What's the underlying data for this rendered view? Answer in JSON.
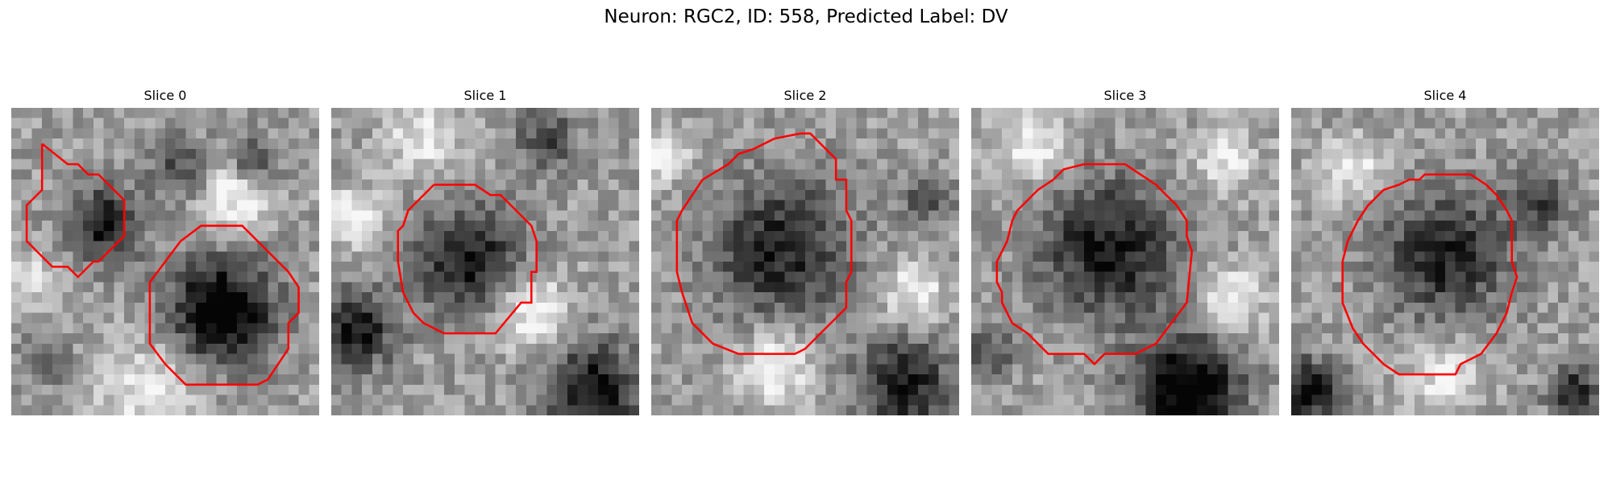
{
  "figure": {
    "title": "Neuron: RGC2, ID: 558, Predicted Label: DV"
  },
  "panels": [
    {
      "title": "Slice 0",
      "seed": 11,
      "blobs": [
        [
          0.3,
          0.38,
          0.14,
          0.55
        ],
        [
          0.68,
          0.66,
          0.2,
          0.75
        ],
        [
          0.55,
          0.2,
          0.12,
          0.35
        ],
        [
          0.78,
          0.18,
          0.1,
          0.4
        ],
        [
          0.12,
          0.82,
          0.1,
          0.25
        ]
      ],
      "bright": [
        [
          0.72,
          0.28,
          0.14,
          0.4
        ],
        [
          0.45,
          0.92,
          0.2,
          0.3
        ],
        [
          0.05,
          0.55,
          0.1,
          0.25
        ]
      ],
      "contour_color": "#ff0000"
    },
    {
      "title": "Slice 1",
      "seed": 23,
      "blobs": [
        [
          0.45,
          0.5,
          0.2,
          0.55
        ],
        [
          0.08,
          0.72,
          0.15,
          0.55
        ],
        [
          0.85,
          0.92,
          0.18,
          0.6
        ],
        [
          0.7,
          0.1,
          0.12,
          0.35
        ]
      ],
      "bright": [
        [
          0.08,
          0.36,
          0.1,
          0.45
        ],
        [
          0.65,
          0.66,
          0.14,
          0.4
        ],
        [
          0.3,
          0.1,
          0.14,
          0.3
        ]
      ],
      "contour_color": "#ff0000"
    },
    {
      "title": "Slice 2",
      "seed": 37,
      "blobs": [
        [
          0.42,
          0.46,
          0.27,
          0.5
        ],
        [
          0.82,
          0.9,
          0.18,
          0.55
        ],
        [
          0.9,
          0.3,
          0.1,
          0.3
        ]
      ],
      "bright": [
        [
          0.4,
          0.84,
          0.14,
          0.4
        ],
        [
          0.05,
          0.15,
          0.1,
          0.35
        ],
        [
          0.85,
          0.6,
          0.12,
          0.35
        ]
      ],
      "contour_color": "#ff0000"
    },
    {
      "title": "Slice 3",
      "seed": 51,
      "blobs": [
        [
          0.45,
          0.46,
          0.26,
          0.55
        ],
        [
          0.7,
          0.92,
          0.2,
          0.75
        ],
        [
          0.05,
          0.8,
          0.1,
          0.35
        ]
      ],
      "bright": [
        [
          0.2,
          0.12,
          0.14,
          0.35
        ],
        [
          0.82,
          0.18,
          0.12,
          0.3
        ],
        [
          0.85,
          0.62,
          0.12,
          0.35
        ]
      ],
      "contour_color": "#ff0000"
    },
    {
      "title": "Slice 4",
      "seed": 67,
      "blobs": [
        [
          0.5,
          0.48,
          0.24,
          0.5
        ],
        [
          0.05,
          0.92,
          0.12,
          0.6
        ],
        [
          0.92,
          0.92,
          0.1,
          0.5
        ],
        [
          0.8,
          0.3,
          0.12,
          0.35
        ]
      ],
      "bright": [
        [
          0.2,
          0.2,
          0.12,
          0.3
        ],
        [
          0.5,
          0.88,
          0.14,
          0.3
        ]
      ],
      "contour_color": "#ff0000"
    }
  ]
}
